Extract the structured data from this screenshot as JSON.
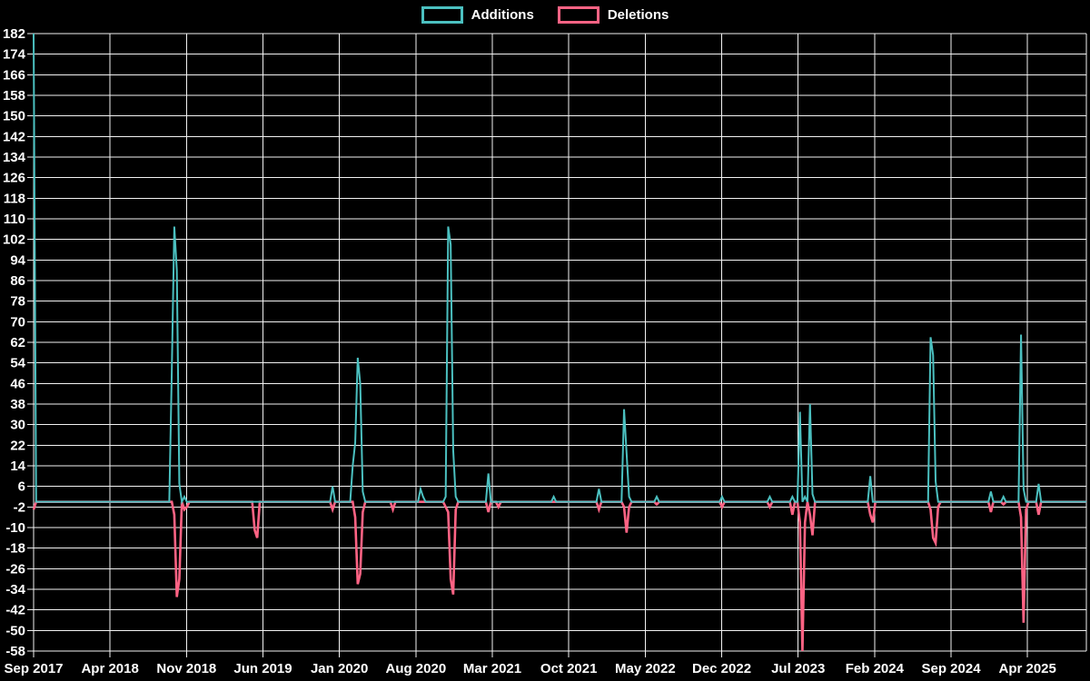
{
  "legend": {
    "items": [
      {
        "label": "Additions",
        "color": "#4bc0c0"
      },
      {
        "label": "Deletions",
        "color": "#ff6384"
      }
    ]
  },
  "chart_data": {
    "type": "line",
    "title": "",
    "xlabel": "",
    "ylabel": "",
    "legend_position": "top-center",
    "grid": true,
    "background_color": "#000000",
    "grid_color": "#f2f2f2",
    "text_color": "#ffffff",
    "x_axis": {
      "tick_labels": [
        "Sep 2017",
        "Apr 2018",
        "Nov 2018",
        "Jun 2019",
        "Jan 2020",
        "Aug 2020",
        "Mar 2021",
        "Oct 2021",
        "May 2022",
        "Dec 2022",
        "Jul 2023",
        "Feb 2024",
        "Sep 2024",
        "Apr 2025"
      ],
      "weeks_per_tick_interval": 30.4286,
      "weeks_total": 420
    },
    "y_axis": {
      "min": -58,
      "max": 182,
      "step": 8,
      "tick_labels": [
        "182",
        "174",
        "166",
        "158",
        "150",
        "142",
        "134",
        "126",
        "118",
        "110",
        "102",
        "94",
        "86",
        "78",
        "70",
        "62",
        "54",
        "46",
        "38",
        "30",
        "22",
        "14",
        "6",
        "-2",
        "-10",
        "-18",
        "-26",
        "-34",
        "-42",
        "-50",
        "-58"
      ]
    },
    "series": [
      {
        "name": "Additions",
        "color": "#4bc0c0",
        "baseline_value": 0
      },
      {
        "name": "Deletions",
        "color": "#ff6384",
        "baseline_value": 0
      }
    ],
    "sparse_points_note": "rows are [week_index_from_Sep_2017, additions, deletions]; all unlisted weeks are [0, 0]",
    "sparse_points": [
      [
        0,
        182,
        -3
      ],
      [
        55,
        51,
        0
      ],
      [
        56,
        107,
        -5
      ],
      [
        57,
        90,
        -37
      ],
      [
        58,
        7,
        -30
      ],
      [
        60,
        2,
        -3
      ],
      [
        61,
        0,
        -2
      ],
      [
        88,
        0,
        -11
      ],
      [
        89,
        0,
        -14
      ],
      [
        119,
        6,
        -3
      ],
      [
        127,
        14,
        0
      ],
      [
        128,
        23,
        -6
      ],
      [
        129,
        56,
        -32
      ],
      [
        130,
        46,
        -28
      ],
      [
        131,
        4,
        -4
      ],
      [
        143,
        0,
        -3
      ],
      [
        154,
        5,
        0
      ],
      [
        155,
        2,
        0
      ],
      [
        164,
        2,
        -2
      ],
      [
        165,
        107,
        -4
      ],
      [
        166,
        100,
        -30
      ],
      [
        167,
        20,
        -36
      ],
      [
        168,
        2,
        -3
      ],
      [
        181,
        11,
        -4
      ],
      [
        185,
        0,
        -2
      ],
      [
        207,
        2,
        0
      ],
      [
        225,
        5,
        -3
      ],
      [
        235,
        36,
        -2
      ],
      [
        236,
        19,
        -12
      ],
      [
        237,
        2,
        -2
      ],
      [
        248,
        2,
        -1
      ],
      [
        274,
        2,
        -2
      ],
      [
        293,
        2,
        -2
      ],
      [
        302,
        2,
        -5
      ],
      [
        305,
        35,
        -8
      ],
      [
        306,
        0,
        -58
      ],
      [
        307,
        2,
        -8
      ],
      [
        309,
        38,
        -5
      ],
      [
        310,
        3,
        -13
      ],
      [
        333,
        10,
        -5
      ],
      [
        334,
        0,
        -8
      ],
      [
        357,
        64,
        -3
      ],
      [
        358,
        57,
        -14
      ],
      [
        359,
        8,
        -16
      ],
      [
        360,
        0,
        -2
      ],
      [
        381,
        4,
        -4
      ],
      [
        386,
        2,
        -1
      ],
      [
        393,
        65,
        -6
      ],
      [
        394,
        5,
        -47
      ],
      [
        395,
        0,
        -3
      ],
      [
        400,
        7,
        -5
      ]
    ]
  }
}
